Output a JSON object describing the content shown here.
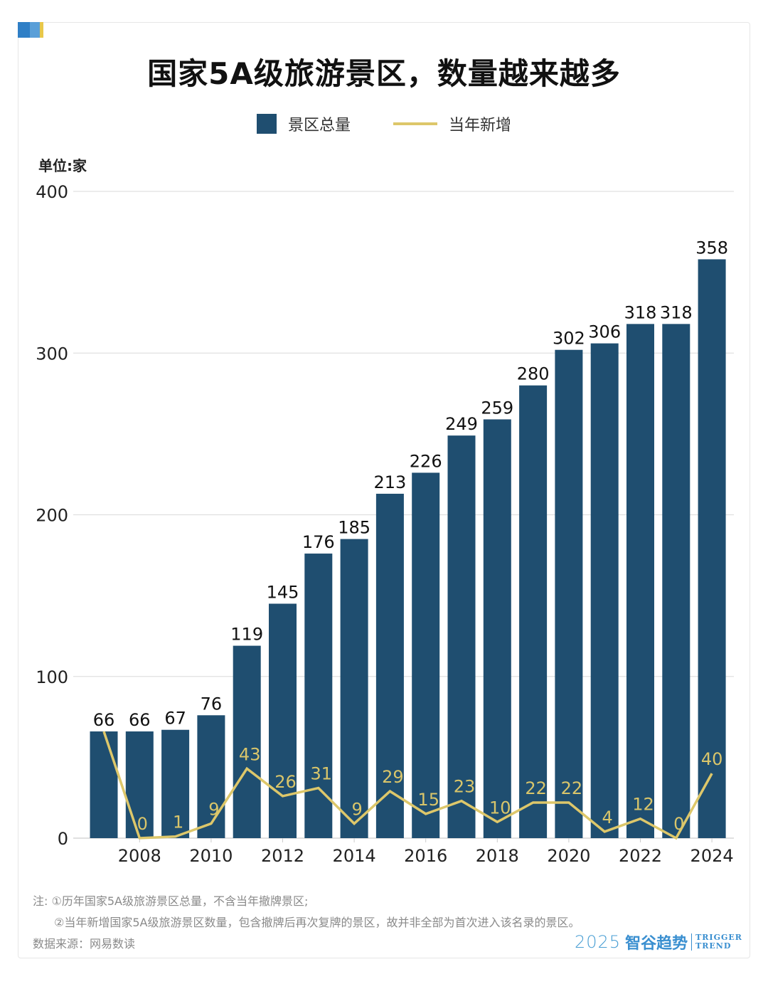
{
  "accent_colors": [
    "#2f7fc6",
    "#5a9fd8",
    "#e8c84a"
  ],
  "title": "国家5A级旅游景区，数量越来越多",
  "legend": {
    "bars_label": "景区总量",
    "line_label": "当年新增"
  },
  "unit_label": "单位:家",
  "colors": {
    "bar": "#1f4e70",
    "line": "#ddc76a",
    "line_label": "#d9c56a",
    "grid": "#e0e0e0",
    "axis_text": "#222222"
  },
  "chart_data": {
    "type": "bar+line",
    "title": "国家5A级旅游景区，数量越来越多",
    "ylabel": "单位:家",
    "ylim": [
      0,
      400
    ],
    "yticks": [
      0,
      100,
      200,
      300,
      400
    ],
    "grid": true,
    "legend_position": "top-center",
    "x": [
      2007,
      2008,
      2009,
      2010,
      2011,
      2012,
      2013,
      2014,
      2015,
      2016,
      2017,
      2018,
      2019,
      2020,
      2021,
      2022,
      2023,
      2024
    ],
    "xtick_labels": [
      "2008",
      "2010",
      "2012",
      "2014",
      "2016",
      "2018",
      "2020",
      "2022",
      "2024"
    ],
    "series": [
      {
        "name": "景区总量",
        "type": "bar",
        "values": [
          66,
          66,
          67,
          76,
          119,
          145,
          176,
          185,
          213,
          226,
          249,
          259,
          280,
          302,
          306,
          318,
          318,
          358
        ]
      },
      {
        "name": "当年新增",
        "type": "line",
        "values": [
          66,
          0,
          1,
          9,
          43,
          26,
          31,
          9,
          29,
          15,
          23,
          10,
          22,
          22,
          4,
          12,
          0,
          40
        ]
      }
    ]
  },
  "notes": {
    "note1": "注: ①历年国家5A级旅游景区总量，不含当年撤牌景区;",
    "note2": "②当年新增国家5A级旅游景区数量，包含撤牌后再次复牌的景区，故并非全部为首次进入该名录的景区。",
    "source": "数据来源：网易数读"
  },
  "brand": {
    "year": "2025",
    "name_cn": "智谷趋势",
    "name_en_1": "TRIGGER",
    "name_en_2": "TREND"
  }
}
